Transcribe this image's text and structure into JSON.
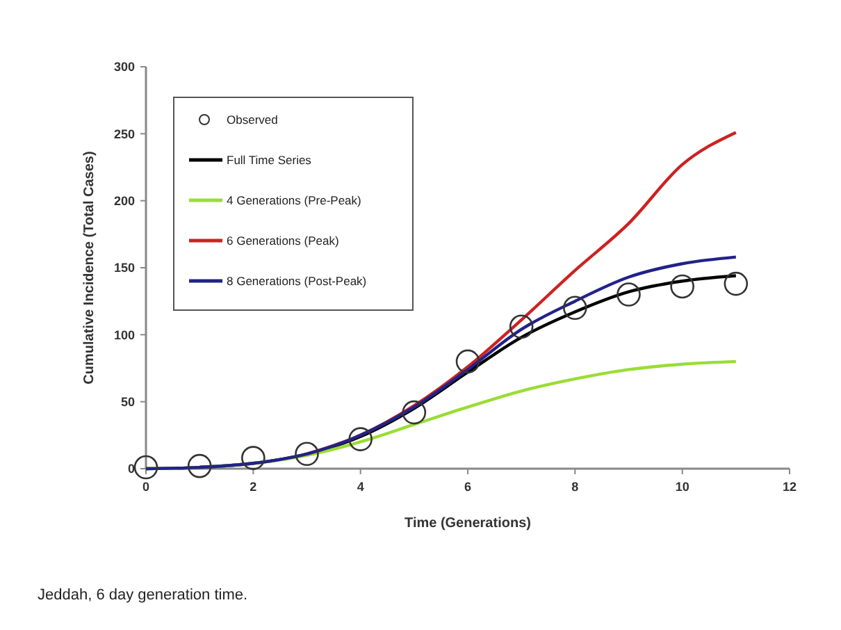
{
  "chart_data": {
    "type": "line",
    "xlabel": "Time (Generations)",
    "ylabel": "Cumulative Incidence (Total Cases)",
    "x": [
      0,
      1,
      2,
      3,
      4,
      5,
      6,
      7,
      8,
      9,
      10,
      11
    ],
    "xlim": [
      0,
      12
    ],
    "xticks": [
      0,
      2,
      4,
      6,
      8,
      10,
      12
    ],
    "ylim": [
      0,
      300
    ],
    "yticks": [
      0,
      50,
      100,
      150,
      200,
      250,
      300
    ],
    "grid": false,
    "legend": "top left",
    "annotations": [
      "Jeddah, 6 day generation time."
    ],
    "series": [
      {
        "name": "Observed",
        "type": "scatter",
        "marker": "circle",
        "color": "#333333",
        "values": [
          1,
          2,
          8,
          11,
          22,
          42,
          80,
          106,
          120,
          130,
          136,
          138
        ]
      },
      {
        "name": "Full Time Series",
        "color": "#000000",
        "values": [
          0,
          1,
          4,
          11,
          24,
          45,
          72,
          98,
          117,
          132,
          140,
          144
        ]
      },
      {
        "name": "4 Generations (Pre-Peak)",
        "color": "#99dd33",
        "values": [
          0,
          1,
          4,
          10,
          20,
          33,
          46,
          58,
          67,
          74,
          78,
          80
        ]
      },
      {
        "name": "6 Generations (Peak)",
        "color": "#cc2222",
        "values": [
          null,
          null,
          null,
          11,
          25,
          47,
          76,
          111,
          148,
          183,
          227,
          251
        ]
      },
      {
        "name": "8 Generations (Post-Peak)",
        "color": "#22228a",
        "values": [
          0,
          1,
          4,
          11,
          25,
          46,
          74,
          104,
          125,
          143,
          153,
          158
        ]
      }
    ]
  }
}
